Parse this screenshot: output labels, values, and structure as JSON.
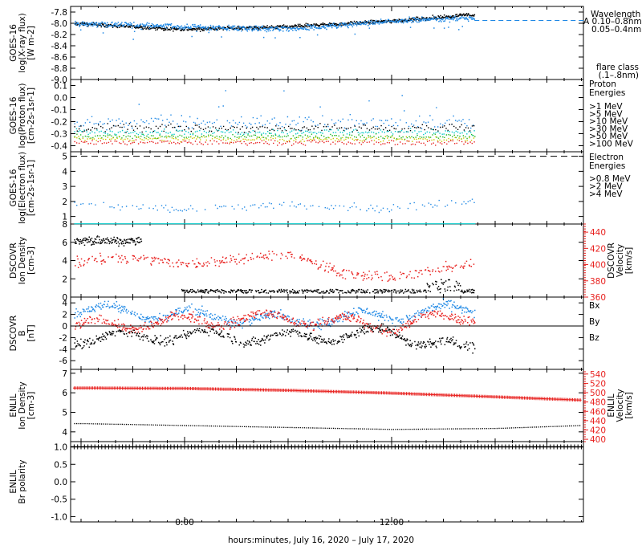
{
  "colors": {
    "black": "#000000",
    "blue": "#1e88e5",
    "cyan": "#00c8c8",
    "green": "#22b822",
    "yellow": "#c8c800",
    "orange": "#f07800",
    "red": "#e8211f",
    "magenta": "#e000e0"
  },
  "xaxis": {
    "label": "hours:minutes, July 16, 2020 – July 17, 2020",
    "ticks": [
      "0:00",
      "12:00"
    ]
  },
  "chart_data": [
    {
      "type": "scatter",
      "ylabel": [
        "GOES-16",
        "log(X-ray flux)",
        "[W m-2]"
      ],
      "ylim": [
        -9.0,
        -7.7
      ],
      "yticks": [
        "-7.8",
        "-8.0",
        "-8.2",
        "-8.4",
        "-8.6",
        "-8.8",
        "-9.0"
      ],
      "legend_title": "Wavelength",
      "legend": [
        {
          "text": "A 0.10–0.8nm",
          "color": "#1e88e5"
        },
        {
          "text": "0.05–0.4nm",
          "color": "#000000"
        }
      ],
      "note": [
        "flare class",
        "(.1–.8nm)"
      ],
      "reference_line": {
        "value": -7.95,
        "label": "A"
      },
      "series": [
        {
          "name": "0.10–0.8nm",
          "color": "#1e88e5",
          "x": [
            -6,
            0,
            6,
            12,
            16
          ],
          "y": [
            -8.0,
            -8.05,
            -8.1,
            -7.95,
            -7.9
          ]
        },
        {
          "name": "0.05–0.4nm",
          "color": "#000000",
          "x": [
            -6,
            0,
            6,
            12,
            16
          ],
          "y": [
            -8.0,
            -8.1,
            -8.05,
            -7.95,
            -7.85
          ]
        }
      ]
    },
    {
      "type": "scatter",
      "ylabel": [
        "GOES-16",
        "log(Proton flux)",
        "[cm-2s-1sr-1]"
      ],
      "ylim": [
        -0.45,
        0.15
      ],
      "yticks": [
        "0.1",
        "0.0",
        "-0.1",
        "-0.2",
        "-0.3",
        "-0.4"
      ],
      "legend_title": [
        "Proton",
        "Energies"
      ],
      "legend": [
        {
          "text": ">1 MeV",
          "color": "#1e88e5"
        },
        {
          "text": ">5 MeV",
          "color": "#000000"
        },
        {
          "text": ">10 MeV",
          "color": "#00c8c8"
        },
        {
          "text": ">30 MeV",
          "color": "#22b822"
        },
        {
          "text": ">50 MeV",
          "color": "#c8c800"
        },
        {
          "text": ">100 MeV",
          "color": "#e8211f"
        }
      ],
      "series": [
        {
          "name": ">1 MeV",
          "color": "#1e88e5",
          "x": [
            -6,
            16
          ],
          "y": [
            -0.2,
            -0.2
          ]
        },
        {
          "name": ">5 MeV",
          "color": "#000000",
          "x": [
            -6,
            16
          ],
          "y": [
            -0.25,
            -0.25
          ]
        },
        {
          "name": ">10 MeV",
          "color": "#00c8c8",
          "x": [
            -6,
            16
          ],
          "y": [
            -0.28,
            -0.28
          ]
        },
        {
          "name": ">30 MeV",
          "color": "#22b822",
          "x": [
            -6,
            16
          ],
          "y": [
            -0.32,
            -0.32
          ]
        },
        {
          "name": ">50 MeV",
          "color": "#c8c800",
          "x": [
            -6,
            16
          ],
          "y": [
            -0.34,
            -0.34
          ]
        },
        {
          "name": ">100 MeV",
          "color": "#e8211f",
          "x": [
            -6,
            16
          ],
          "y": [
            -0.37,
            -0.37
          ]
        }
      ]
    },
    {
      "type": "scatter",
      "ylabel": [
        "GOES-16",
        "log(Electron flux)",
        "[cm-2s-1sr-1]"
      ],
      "ylim": [
        0.5,
        5.3
      ],
      "yticks": [
        "5",
        "4",
        "3",
        "2",
        "1"
      ],
      "legend_title": [
        "Electron",
        "Energies"
      ],
      "legend": [
        {
          "text": ">0.8 MeV",
          "color": "#000000"
        },
        {
          "text": ">2 MeV",
          "color": "#1e88e5"
        },
        {
          "text": ">4 MeV",
          "color": "#e000e0"
        }
      ],
      "reference_line": {
        "value": 5.0
      },
      "series": [
        {
          "name": ">2 MeV",
          "color": "#1e88e5",
          "x": [
            -6,
            0,
            6,
            12,
            16
          ],
          "y": [
            1.9,
            1.5,
            1.8,
            1.6,
            2.0
          ]
        },
        {
          "name": ">4 MeV",
          "color": "#00c8c8",
          "x": [
            -6,
            16
          ],
          "y": [
            0.55,
            0.55
          ]
        }
      ]
    },
    {
      "type": "scatter",
      "ylabel": [
        "DSCOVR",
        "Ion Density",
        "[cm-3]"
      ],
      "ylim": [
        0,
        8
      ],
      "yticks": [
        "8",
        "6",
        "4",
        "2",
        "0"
      ],
      "ylabel_right": [
        "DSCOVR",
        "Velocity",
        "[km/s]"
      ],
      "ylim_right": [
        360,
        450
      ],
      "yticks_right": [
        "440",
        "420",
        "400",
        "380",
        "360"
      ],
      "series": [
        {
          "name": "Density",
          "color": "#000000",
          "x": [
            -6,
            -3,
            0,
            6,
            12,
            16
          ],
          "y": [
            6.5,
            6.5,
            0.4,
            0.5,
            0.6,
            0.8
          ]
        },
        {
          "name": "Velocity",
          "color": "#e8211f",
          "x": [
            -6,
            -3,
            0,
            6,
            9,
            12,
            16
          ],
          "y": [
            405,
            410,
            400,
            415,
            390,
            385,
            400
          ]
        }
      ]
    },
    {
      "type": "scatter",
      "ylabel": [
        "DSCOVR",
        "B",
        "[nT]"
      ],
      "ylim": [
        -7.5,
        5
      ],
      "yticks": [
        "4",
        "2",
        "0",
        "-2",
        "-4",
        "-6"
      ],
      "legend": [
        {
          "text": "Bx",
          "color": "#000000"
        },
        {
          "text": "By",
          "color": "#1e88e5"
        },
        {
          "text": "Bz",
          "color": "#e8211f"
        }
      ],
      "series": [
        {
          "name": "Bx",
          "color": "#000000",
          "x": [
            -6,
            0,
            6,
            12,
            16
          ],
          "y": [
            -2,
            -1.5,
            -2,
            -1,
            -4
          ]
        },
        {
          "name": "By",
          "color": "#1e88e5",
          "x": [
            -6,
            0,
            6,
            12,
            16
          ],
          "y": [
            3,
            2,
            1,
            2,
            3
          ]
        },
        {
          "name": "Bz",
          "color": "#e8211f",
          "x": [
            -6,
            0,
            6,
            12,
            16
          ],
          "y": [
            0,
            1,
            1.5,
            0,
            2
          ]
        }
      ]
    },
    {
      "type": "scatter",
      "ylabel": [
        "ENLIL",
        "Ion Density",
        "[cm-3]"
      ],
      "ylim": [
        3.5,
        7.2
      ],
      "yticks": [
        "7",
        "6",
        "5",
        "4"
      ],
      "ylabel_right": [
        "ENLIL",
        "Velocity",
        "[km/s]"
      ],
      "ylim_right": [
        395,
        550
      ],
      "yticks_right": [
        "540",
        "520",
        "500",
        "480",
        "460",
        "440",
        "420",
        "400"
      ],
      "series": [
        {
          "name": "Density",
          "color": "#000000",
          "x": [
            -6,
            0,
            6,
            12,
            18,
            23
          ],
          "y": [
            4.45,
            4.35,
            4.25,
            4.15,
            4.2,
            4.35
          ]
        },
        {
          "name": "Velocity",
          "color": "#e8211f",
          "x": [
            -6,
            0,
            6,
            12,
            18,
            23
          ],
          "y": [
            510,
            509,
            505,
            499,
            491,
            484
          ]
        }
      ]
    },
    {
      "type": "scatter",
      "ylabel": [
        "ENLIL",
        "Br polarity"
      ],
      "ylim": [
        -1.15,
        1.15
      ],
      "yticks": [
        "1.0",
        "0.5",
        "0.0",
        "-0.5",
        "-1.0"
      ],
      "series": [
        {
          "name": "Br polarity",
          "color": "#000000",
          "x": [
            -6,
            23
          ],
          "y": [
            1.0,
            1.0
          ]
        }
      ]
    }
  ]
}
